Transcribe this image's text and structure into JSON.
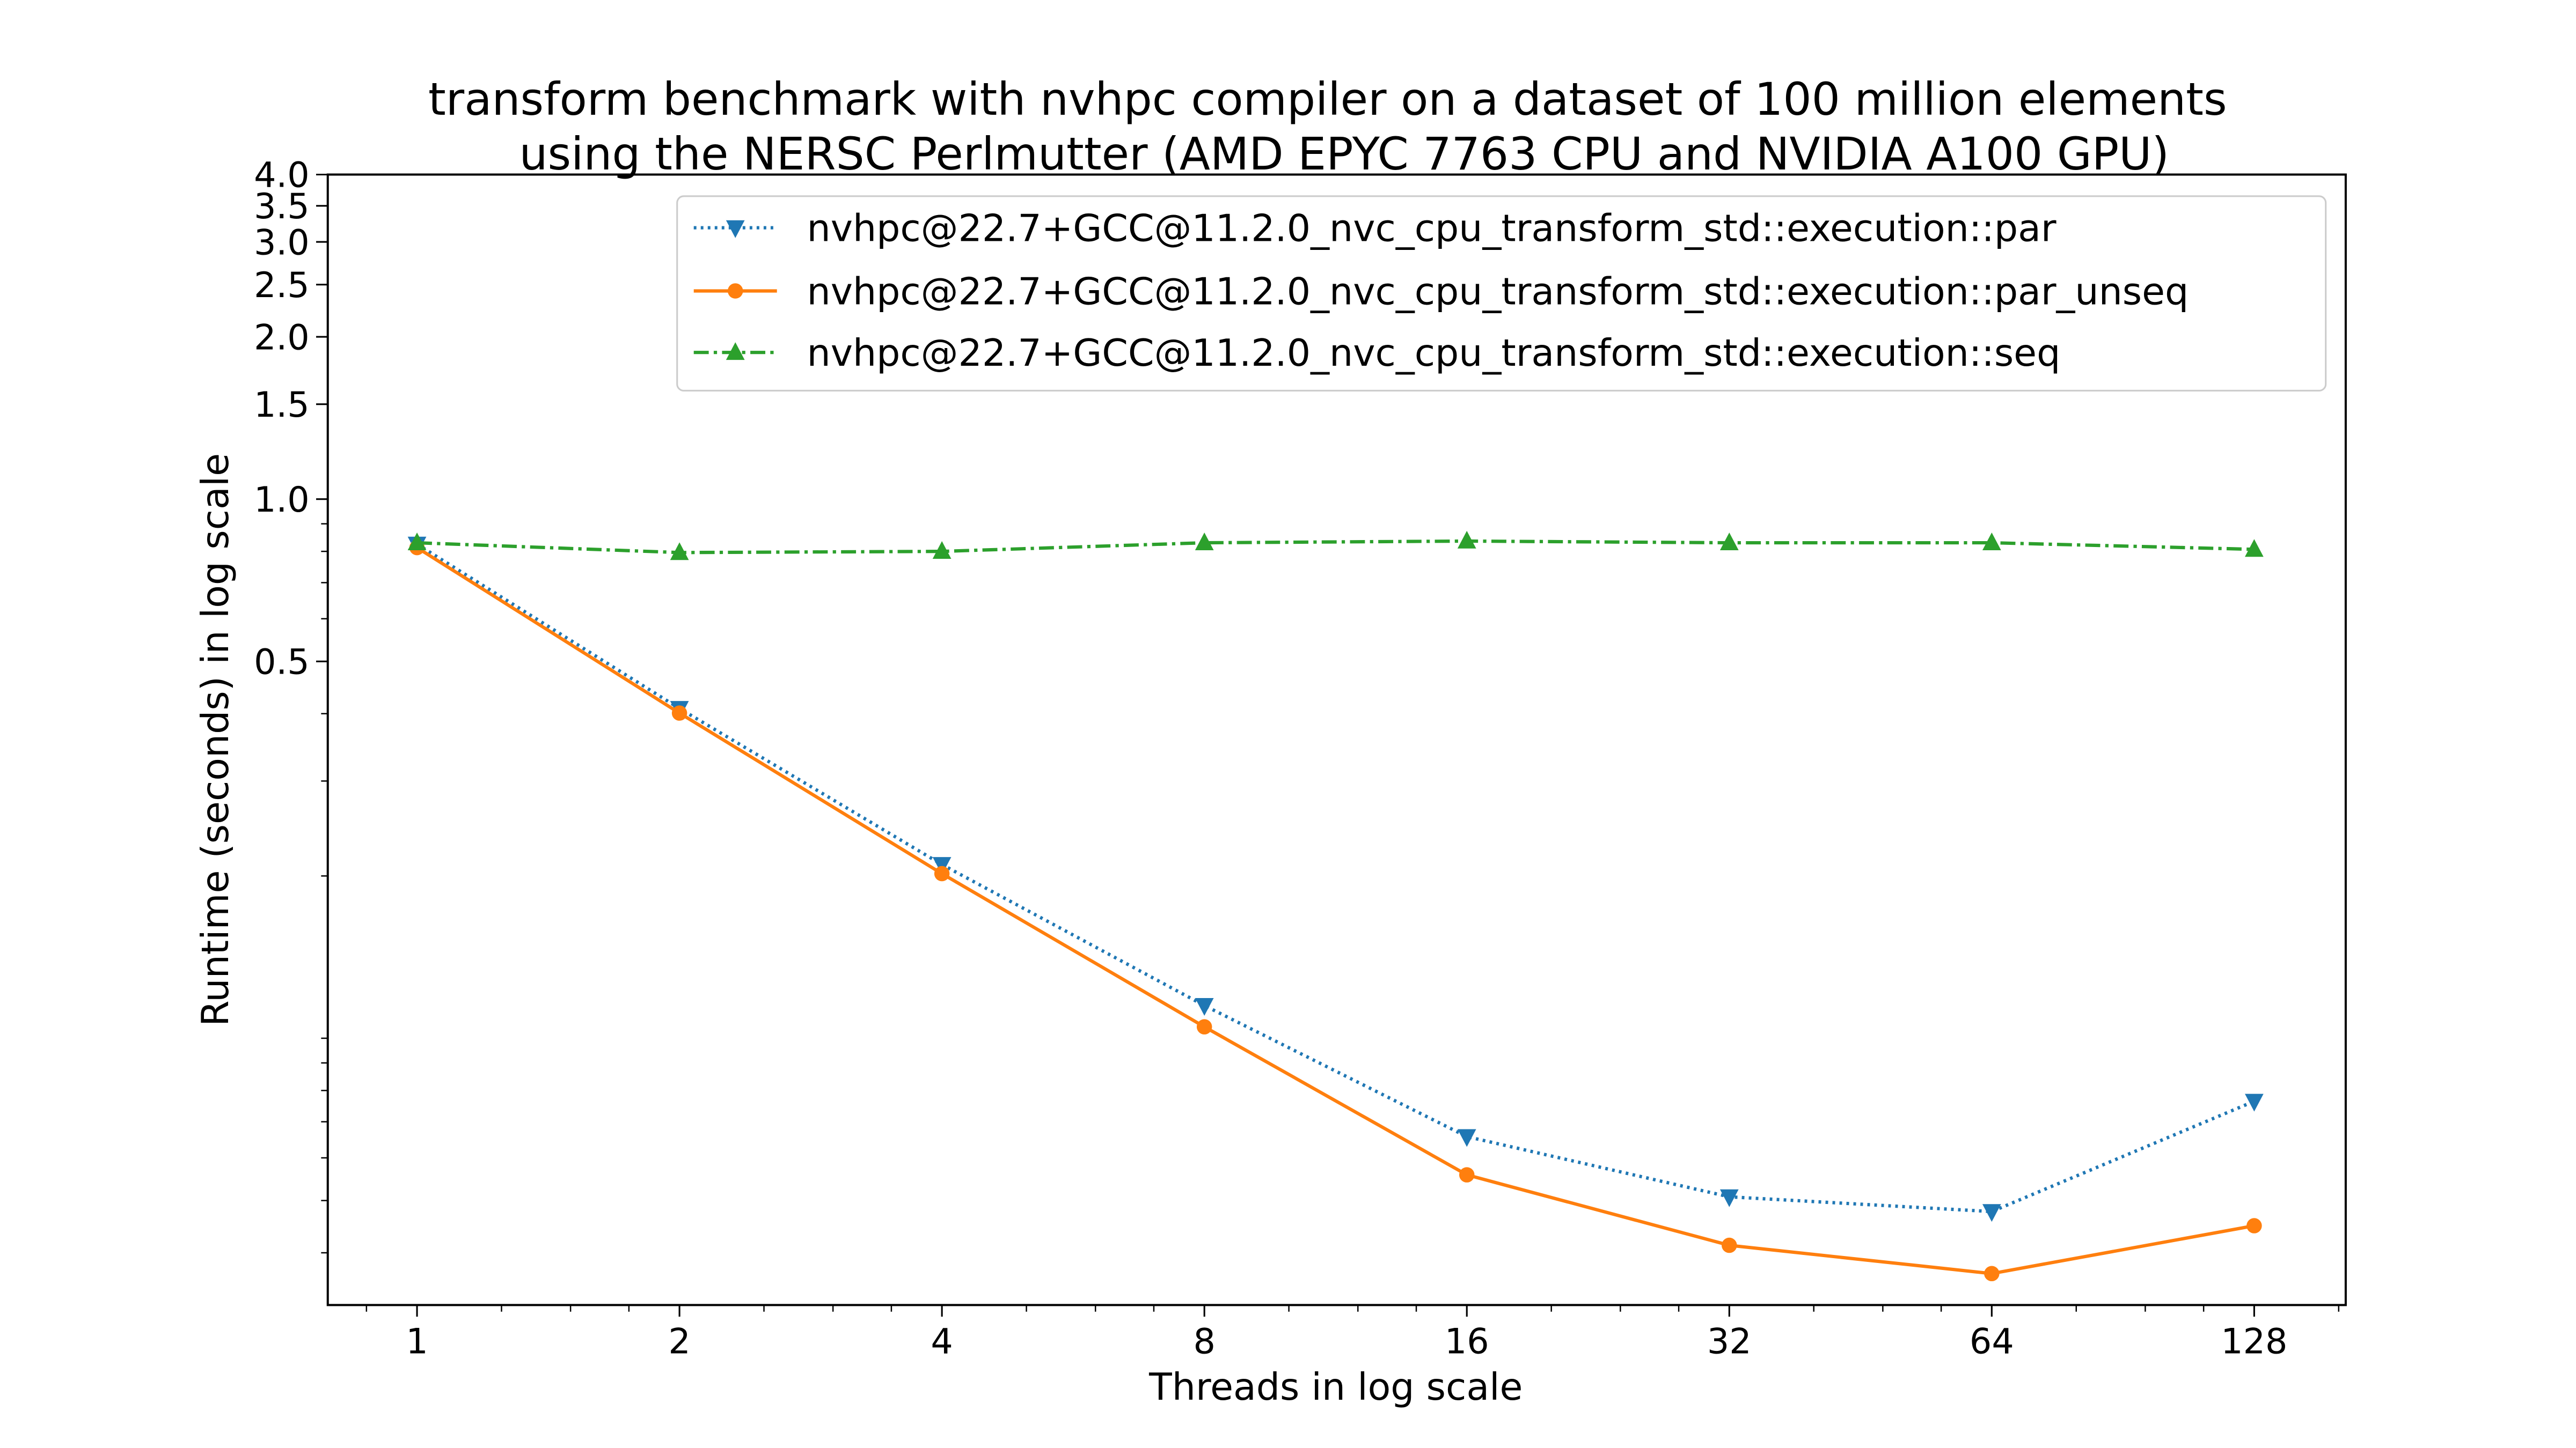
{
  "chart_data": {
    "type": "line",
    "title": [
      "transform benchmark with nvhpc compiler on a dataset of 100 million elements",
      "using the NERSC Perlmutter (AMD EPYC 7763 CPU and NVIDIA A100 GPU)"
    ],
    "xlabel": "Threads in log scale",
    "ylabel": "Runtime (seconds) in log scale",
    "xscale": "log2",
    "yscale": "log",
    "xlim": [
      0.79,
      163
    ],
    "ylim": [
      0.032,
      4.0
    ],
    "x": [
      1,
      2,
      4,
      8,
      16,
      32,
      64,
      128
    ],
    "x_tick_labels": [
      "1",
      "2",
      "4",
      "8",
      "16",
      "32",
      "64",
      "128"
    ],
    "y_ticks": [
      0.5,
      1.0,
      1.5,
      2.0,
      2.5,
      3.0,
      3.5,
      4.0
    ],
    "y_tick_labels": [
      "0.5",
      "1.0",
      "1.5",
      "2.0",
      "2.5",
      "3.0",
      "3.5",
      "4.0"
    ],
    "grid": false,
    "legend_position": "top-right",
    "series": [
      {
        "name": "nvhpc@22.7+GCC@11.2.0_nvc_cpu_transform_std::execution::par",
        "color": "#1f77b4",
        "linestyle": "dotted",
        "marker": "triangle-down",
        "values": [
          0.825,
          0.409,
          0.21,
          0.115,
          0.0657,
          0.0508,
          0.0477,
          0.0764
        ]
      },
      {
        "name": "nvhpc@22.7+GCC@11.2.0_nvc_cpu_transform_std::execution::par_unseq",
        "color": "#ff7f0e",
        "linestyle": "solid",
        "marker": "circle",
        "values": [
          0.813,
          0.401,
          0.202,
          0.105,
          0.0558,
          0.0413,
          0.0366,
          0.0449
        ]
      },
      {
        "name": "nvhpc@22.7+GCC@11.2.0_nvc_cpu_transform_std::execution::seq",
        "color": "#2ca02c",
        "linestyle": "dashdot",
        "marker": "triangle-up",
        "values": [
          0.83,
          0.796,
          0.8,
          0.83,
          0.836,
          0.83,
          0.83,
          0.807
        ]
      }
    ]
  }
}
